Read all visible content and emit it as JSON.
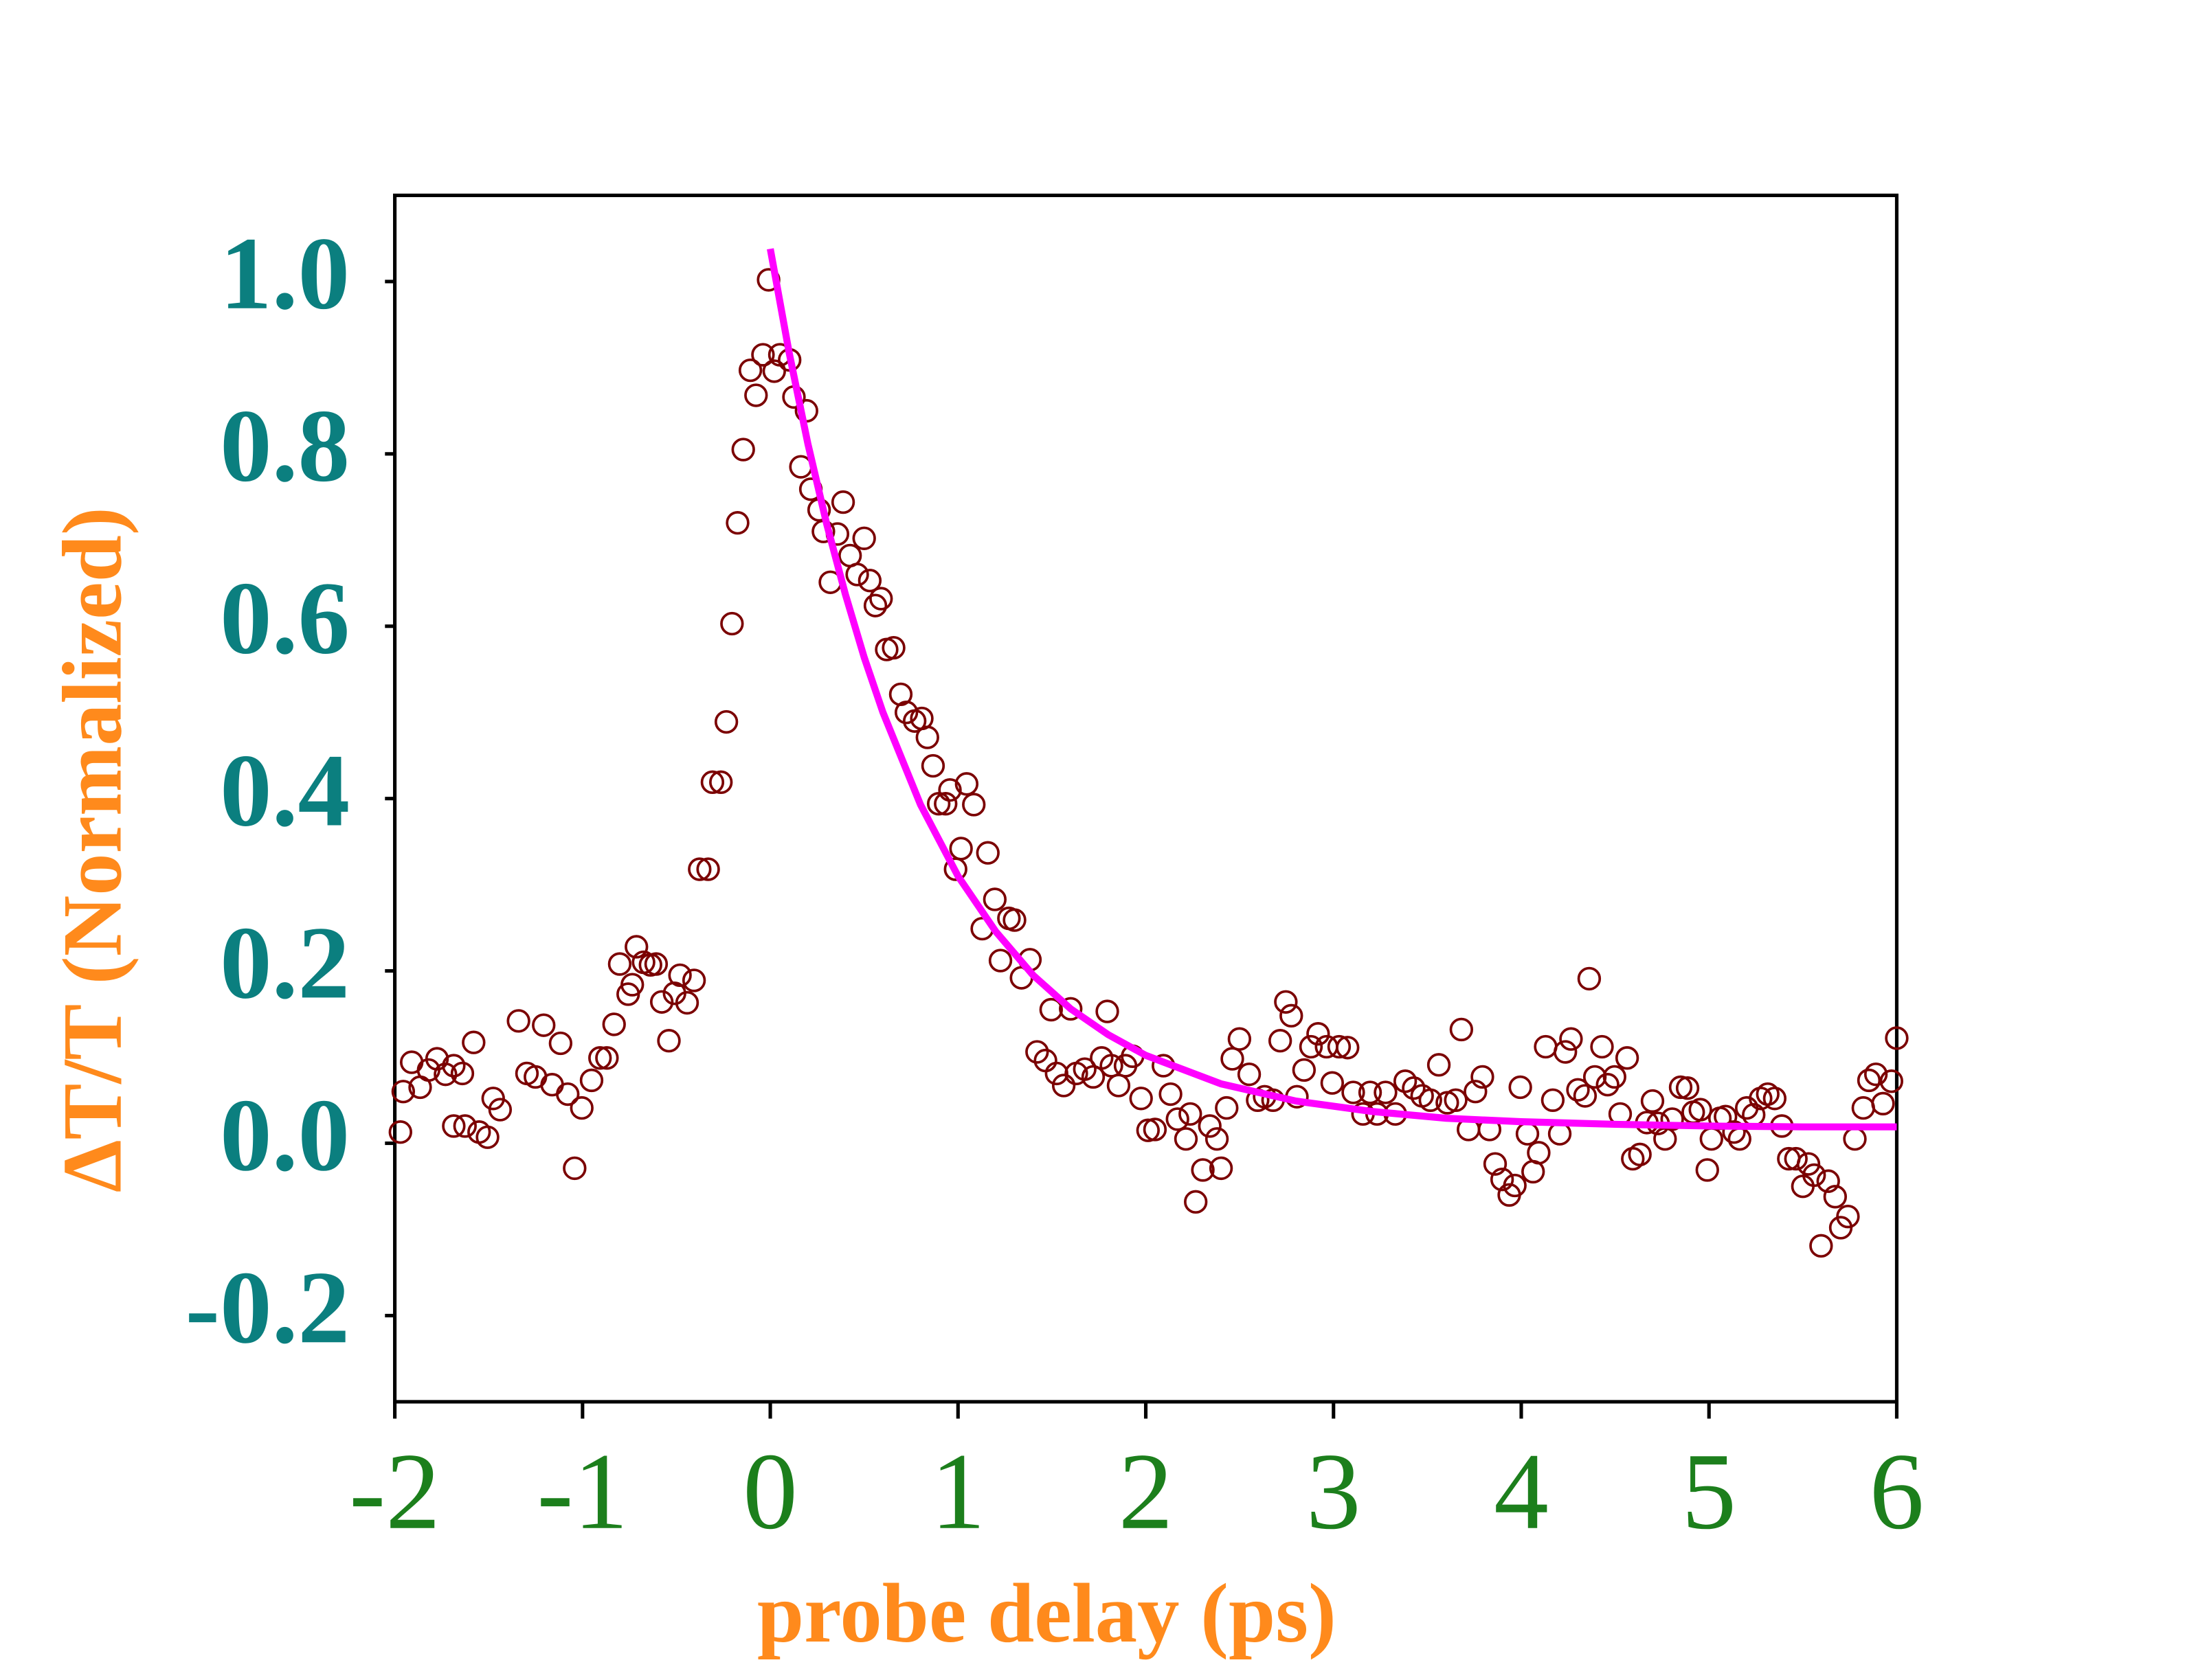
{
  "chart_data": {
    "type": "scatter",
    "xlabel": "probe delay (ps)",
    "ylabel": "ΔT/T (Normalized)",
    "xlim": [
      -2,
      6
    ],
    "ylim": [
      -0.3,
      1.1
    ],
    "xticks": [
      -2,
      -1,
      0,
      1,
      2,
      3,
      4,
      5,
      6
    ],
    "yticks": [
      -0.2,
      {
        "value": 0,
        "label": "0.0"
      },
      0.2,
      0.4,
      0.6,
      0.8,
      {
        "value": 1,
        "label": "1.0"
      }
    ],
    "series": [
      {
        "type": "scatter",
        "color": "#7b0000",
        "x": [
          -1.97,
          -1.955,
          -1.91,
          -1.865,
          -1.82,
          -1.775,
          -1.73,
          -1.686,
          -1.64,
          -1.58,
          -1.686,
          -1.626,
          -1.551,
          -1.506,
          -1.476,
          -1.439,
          -1.341,
          -1.296,
          -1.251,
          -1.207,
          -1.162,
          -1.117,
          -1.079,
          -1.042,
          -1.004,
          -0.952,
          -0.907,
          -0.87,
          -0.832,
          -0.802,
          -0.757,
          -0.735,
          -0.713,
          -0.675,
          -0.638,
          -0.608,
          -0.578,
          -0.54,
          -0.51,
          -0.481,
          -0.443,
          -0.406,
          -0.376,
          -0.331,
          -0.308,
          -0.263,
          -0.234,
          -0.204,
          -0.174,
          -0.144,
          -0.106,
          -0.076,
          -0.039,
          -0.009,
          0.021,
          0.051,
          0.103,
          0.126,
          0.163,
          0.193,
          0.216,
          0.26,
          0.283,
          0.32,
          0.358,
          0.388,
          0.425,
          0.463,
          0.5,
          0.53,
          0.56,
          0.59,
          0.62,
          0.657,
          0.695,
          0.725,
          0.769,
          0.807,
          0.837,
          0.867,
          0.897,
          0.934,
          0.957,
          0.987,
          1.016,
          1.046,
          1.084,
          1.129,
          1.159,
          1.196,
          1.226,
          1.271,
          1.301,
          1.338,
          1.383,
          1.421,
          1.466,
          1.496,
          1.525,
          1.563,
          1.6,
          1.63,
          1.675,
          1.72,
          1.765,
          1.795,
          1.817,
          1.855,
          1.892,
          1.93,
          1.975,
          2.012,
          2.049,
          2.094,
          2.132,
          2.169,
          2.214,
          2.237,
          2.266,
          2.304,
          2.341,
          2.379,
          2.401,
          2.431,
          2.461,
          2.499,
          2.551,
          2.596,
          2.633,
          2.678,
          2.716,
          2.746,
          2.775,
          2.805,
          2.843,
          2.88,
          2.918,
          2.963,
          2.993,
          3.03,
          3.075,
          3.105,
          3.157,
          3.195,
          3.232,
          3.277,
          3.329,
          3.382,
          3.427,
          3.472,
          3.516,
          3.561,
          3.606,
          3.651,
          3.681,
          3.719,
          3.756,
          3.793,
          3.831,
          3.861,
          3.898,
          3.936,
          3.966,
          3.995,
          4.033,
          4.063,
          4.093,
          4.13,
          4.168,
          4.205,
          4.235,
          4.265,
          4.302,
          4.34,
          4.362,
          4.392,
          4.43,
          4.46,
          4.497,
          4.527,
          4.564,
          4.594,
          4.632,
          4.669,
          4.699,
          4.729,
          4.766,
          4.804,
          4.849,
          4.886,
          4.916,
          4.954,
          4.991,
          5.013,
          5.058,
          5.088,
          5.133,
          5.163,
          5.201,
          5.238,
          5.275,
          5.313,
          5.35,
          5.388,
          5.425,
          5.463,
          5.5,
          5.53,
          5.56,
          5.597,
          5.635,
          5.672,
          5.702,
          5.74,
          5.777,
          5.822,
          5.852,
          5.889,
          5.927,
          5.972,
          6.0
        ],
        "values": [
          0.013,
          0.06,
          0.094,
          0.065,
          0.085,
          0.098,
          0.08,
          0.09,
          0.081,
          0.117,
          0.02,
          0.02,
          0.013,
          0.007,
          0.052,
          0.039,
          0.142,
          0.081,
          0.077,
          0.137,
          0.068,
          0.116,
          0.057,
          -0.029,
          0.041,
          0.073,
          0.099,
          0.099,
          0.138,
          0.208,
          0.173,
          0.184,
          0.228,
          0.21,
          0.207,
          0.208,
          0.164,
          0.119,
          0.174,
          0.195,
          0.163,
          0.189,
          0.318,
          0.318,
          0.419,
          0.419,
          0.489,
          0.603,
          0.72,
          0.805,
          0.897,
          0.868,
          0.915,
          1.002,
          0.896,
          0.915,
          0.909,
          0.866,
          0.785,
          0.85,
          0.759,
          0.735,
          0.71,
          0.651,
          0.707,
          0.744,
          0.682,
          0.66,
          0.702,
          0.653,
          0.624,
          0.632,
          0.573,
          0.575,
          0.521,
          0.5,
          0.49,
          0.493,
          0.471,
          0.438,
          0.394,
          0.394,
          0.41,
          0.318,
          0.342,
          0.417,
          0.393,
          0.249,
          0.337,
          0.283,
          0.212,
          0.261,
          0.259,
          0.192,
          0.213,
          0.106,
          0.096,
          0.155,
          0.081,
          0.067,
          0.156,
          0.081,
          0.086,
          0.077,
          0.099,
          0.153,
          0.09,
          0.067,
          0.09,
          0.101,
          0.052,
          0.015,
          0.016,
          0.09,
          0.057,
          0.028,
          0.005,
          0.034,
          -0.068,
          -0.031,
          0.02,
          0.005,
          -0.029,
          0.041,
          0.098,
          0.121,
          0.08,
          0.05,
          0.054,
          0.05,
          0.119,
          0.164,
          0.148,
          0.054,
          0.085,
          0.112,
          0.127,
          0.112,
          0.07,
          0.112,
          0.111,
          0.059,
          0.034,
          0.059,
          0.034,
          0.059,
          0.034,
          0.072,
          0.064,
          0.055,
          0.05,
          0.091,
          0.047,
          0.05,
          0.132,
          0.016,
          0.06,
          0.077,
          0.016,
          -0.024,
          -0.042,
          -0.06,
          -0.049,
          0.065,
          0.011,
          -0.033,
          -0.011,
          0.112,
          0.05,
          0.011,
          0.106,
          0.121,
          0.062,
          0.055,
          0.191,
          0.077,
          0.112,
          0.068,
          0.077,
          0.034,
          0.099,
          -0.018,
          -0.013,
          0.024,
          0.049,
          0.023,
          0.005,
          0.028,
          0.065,
          0.064,
          0.036,
          0.039,
          -0.031,
          0.005,
          0.029,
          0.031,
          0.013,
          0.005,
          0.041,
          0.033,
          0.052,
          0.057,
          0.052,
          0.02,
          -0.018,
          -0.018,
          -0.05,
          -0.024,
          -0.037,
          -0.119,
          -0.044,
          -0.062,
          -0.098,
          -0.085,
          0.005,
          0.041,
          0.073,
          0.08,
          0.046,
          0.072,
          0.122
        ]
      },
      {
        "type": "line",
        "color": "#ff00ff",
        "x": [
          0,
          0.1,
          0.2,
          0.3,
          0.4,
          0.5,
          0.6,
          0.8,
          1.0,
          1.2,
          1.4,
          1.6,
          1.8,
          2.0,
          2.4,
          2.8,
          3.2,
          3.6,
          4.0,
          4.5,
          5.0,
          5.5,
          6.0
        ],
        "values": [
          1.038,
          0.918,
          0.812,
          0.719,
          0.637,
          0.564,
          0.5,
          0.393,
          0.31,
          0.246,
          0.195,
          0.156,
          0.126,
          0.102,
          0.069,
          0.049,
          0.037,
          0.029,
          0.025,
          0.022,
          0.02,
          0.019,
          0.019
        ]
      }
    ]
  }
}
